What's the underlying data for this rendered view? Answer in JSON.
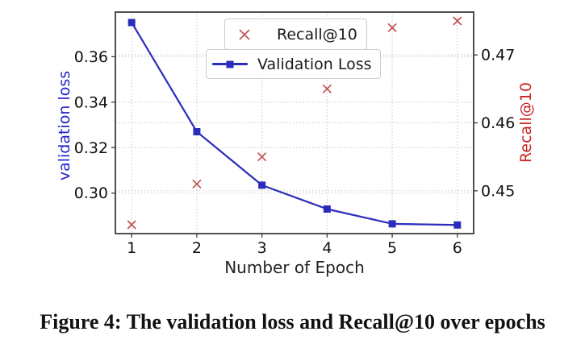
{
  "figure": {
    "caption": "Figure 4: The validation loss and Recall@10 over epochs"
  },
  "chart_data": {
    "type": "line",
    "title": "",
    "xlabel": "Number of Epoch",
    "x": [
      1,
      2,
      3,
      4,
      5,
      6
    ],
    "x_tick_labels": [
      "1",
      "2",
      "3",
      "4",
      "5",
      "6"
    ],
    "xlim": [
      0.75,
      6.25
    ],
    "grid": true,
    "legend": {
      "position": "upper center",
      "entries": [
        "Recall@10",
        "Validation Loss"
      ]
    },
    "series": [
      {
        "name": "Recall@10",
        "axis": "right",
        "marker": "x",
        "line": false,
        "color": "#c25151",
        "values": [
          0.445,
          0.451,
          0.455,
          0.465,
          0.474,
          0.475
        ]
      },
      {
        "name": "Validation Loss",
        "axis": "left",
        "marker": "square",
        "line": true,
        "color": "#2c2cbc",
        "values": [
          0.375,
          0.327,
          0.3035,
          0.293,
          0.2865,
          0.286
        ]
      }
    ],
    "left_axis": {
      "label": "validation loss",
      "color": "#2323cc",
      "ticks": [
        0.3,
        0.32,
        0.34,
        0.36
      ],
      "tick_labels": [
        "0.30",
        "0.32",
        "0.34",
        "0.36"
      ],
      "ylim": [
        0.2822,
        0.3796
      ]
    },
    "right_axis": {
      "label": "Recall@10",
      "color": "#cc2323",
      "ticks": [
        0.45,
        0.46,
        0.47
      ],
      "tick_labels": [
        "0.45",
        "0.46",
        "0.47"
      ],
      "ylim": [
        0.4437,
        0.4763
      ]
    }
  }
}
